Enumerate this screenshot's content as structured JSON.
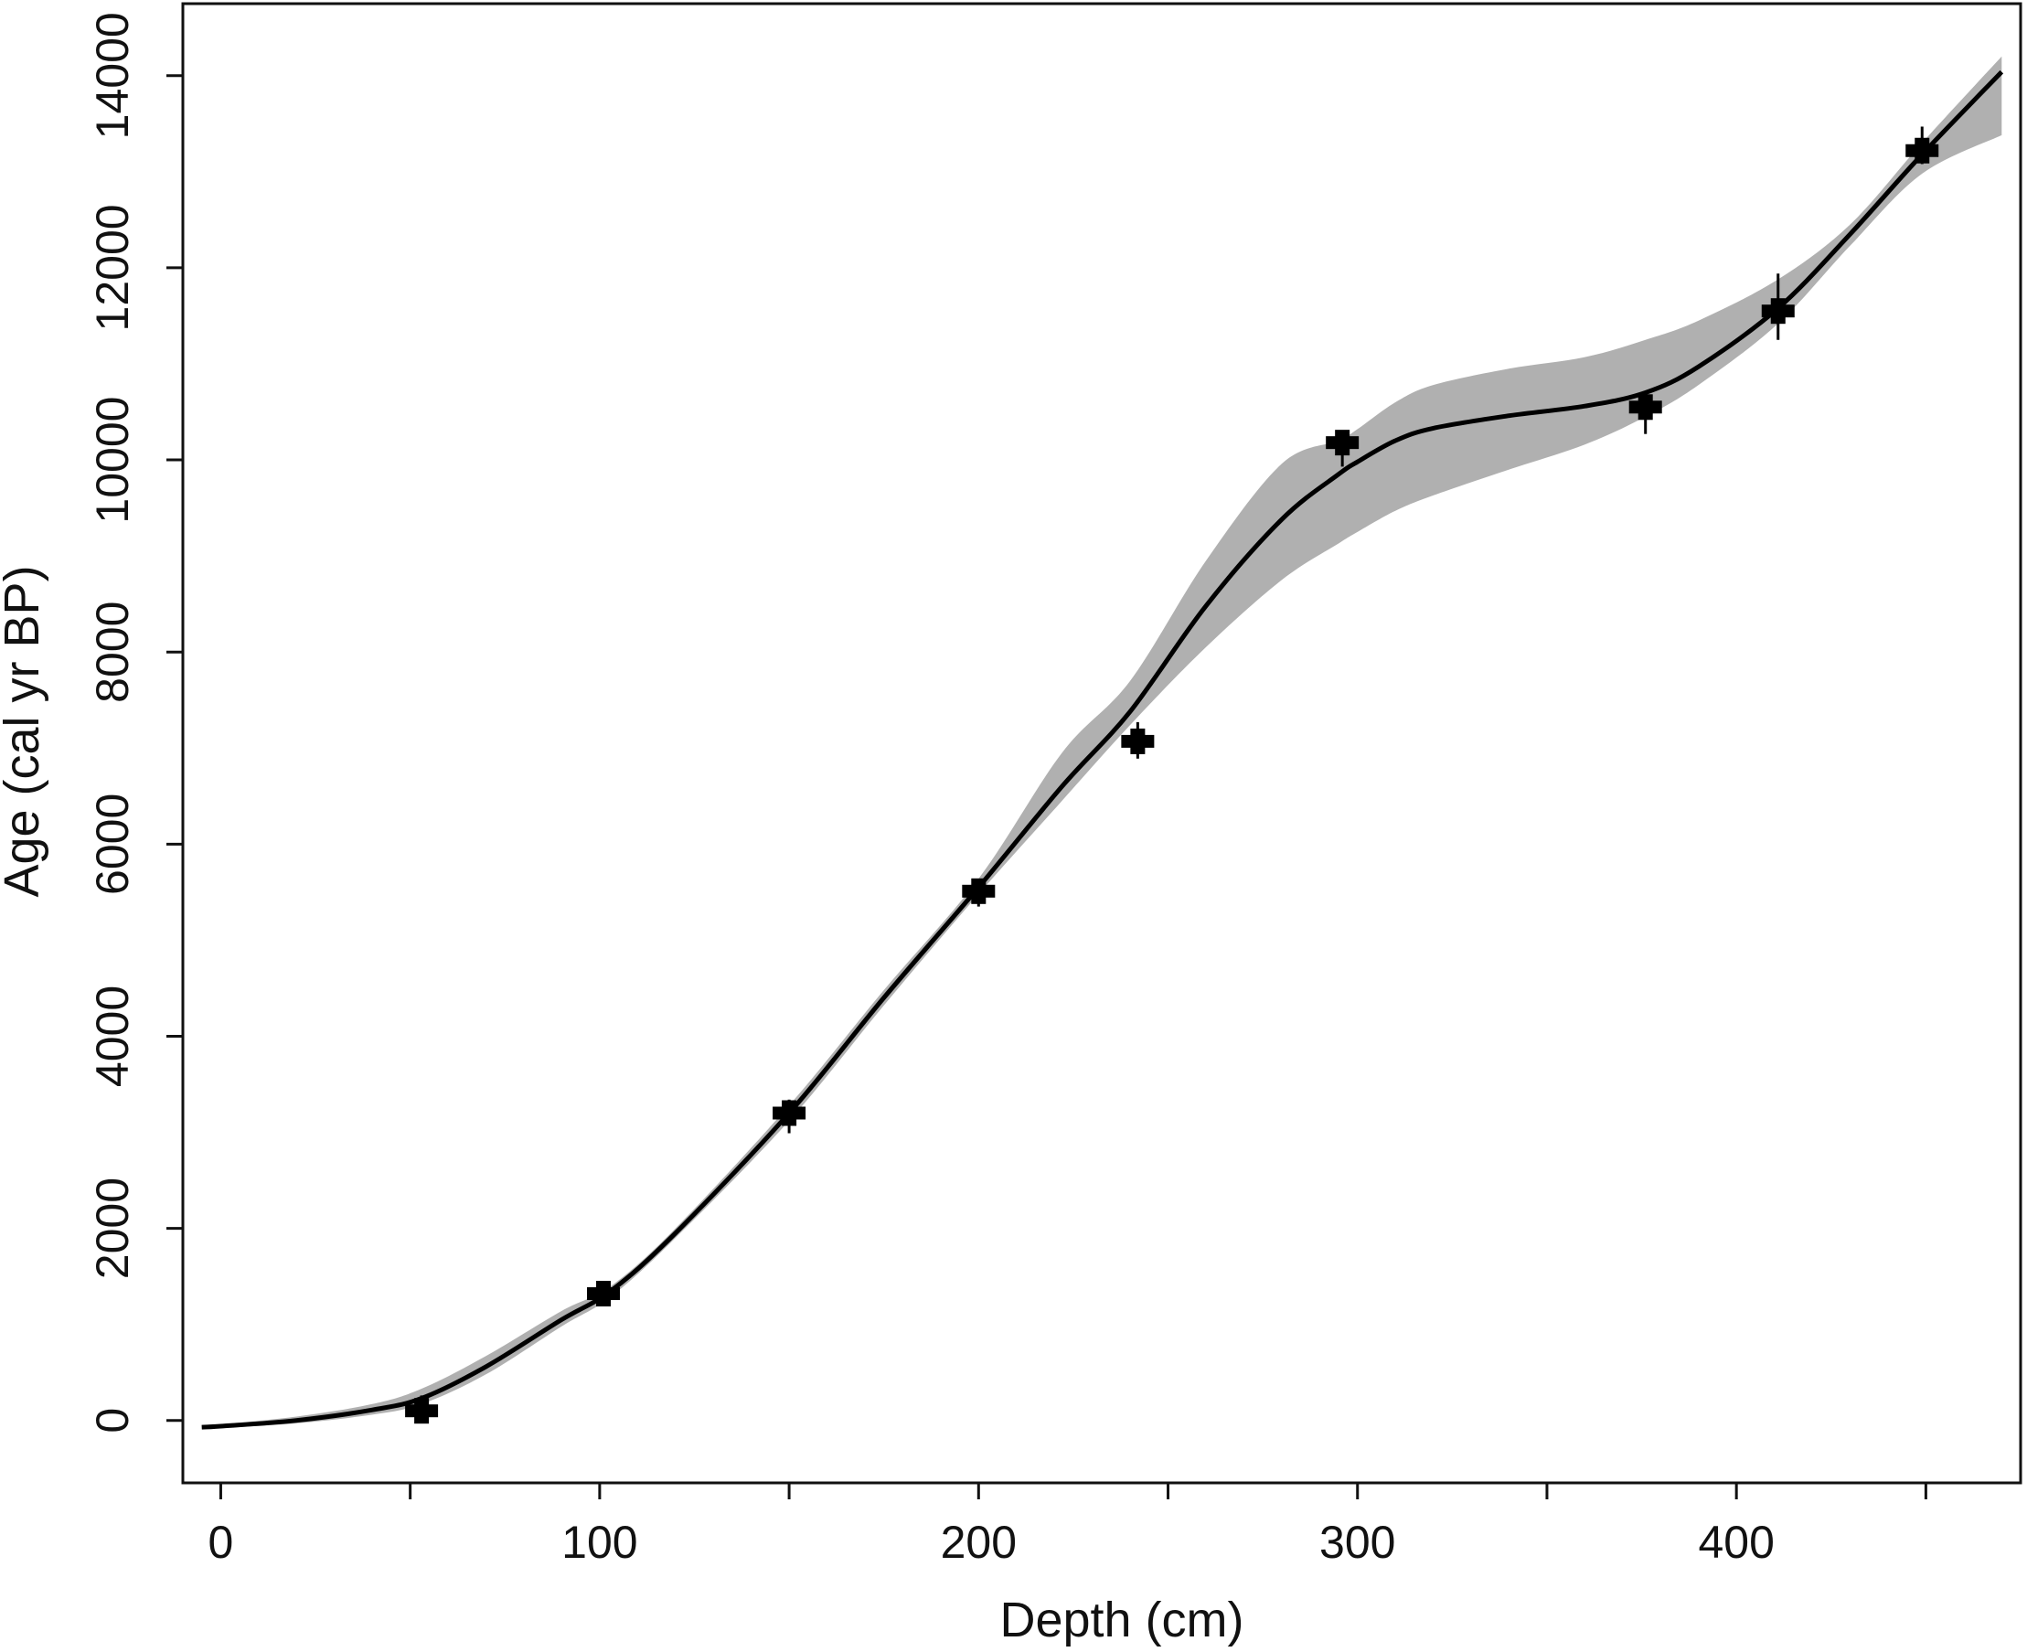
{
  "chart_data": {
    "type": "line",
    "title": "",
    "xlabel": "Depth (cm)",
    "ylabel": "Age (cal yr BP)",
    "xlim": [
      -10,
      475
    ],
    "ylim": [
      -650,
      14750
    ],
    "x_ticks": [
      0,
      100,
      200,
      300,
      400
    ],
    "x_minor_ticks": [
      50,
      150,
      250,
      350,
      450
    ],
    "y_ticks": [
      0,
      2000,
      4000,
      6000,
      8000,
      10000,
      12000,
      14000
    ],
    "grid": false,
    "legend": "none",
    "colors": {
      "line": "#000000",
      "band": "#b0b0b0",
      "dates": "#000000"
    },
    "series": [
      {
        "x": [
          -5,
          0,
          20,
          40,
          53,
          70,
          90,
          103,
          120,
          150,
          175,
          200,
          222,
          240,
          260,
          280,
          295,
          300,
          310,
          320,
          340,
          360,
          376,
          390,
          411,
          430,
          449,
          470
        ],
        "values": [
          -70,
          -60,
          0,
          110,
          230,
          560,
          1050,
          1350,
          1950,
          3200,
          4400,
          5550,
          6600,
          7380,
          8480,
          9380,
          9850,
          9980,
          10200,
          10330,
          10460,
          10560,
          10700,
          10970,
          11580,
          12350,
          13180,
          14040
        ]
      }
    ],
    "band": {
      "x": [
        -5,
        0,
        20,
        40,
        53,
        70,
        90,
        103,
        120,
        150,
        175,
        200,
        222,
        240,
        260,
        280,
        295,
        300,
        310,
        320,
        340,
        360,
        376,
        390,
        411,
        430,
        449,
        470
      ],
      "upper": [
        -50,
        -40,
        40,
        170,
        330,
        670,
        1140,
        1400,
        2000,
        3280,
        4480,
        5640,
        6950,
        7700,
        8950,
        9960,
        10200,
        10320,
        10600,
        10780,
        10950,
        11070,
        11250,
        11450,
        11880,
        12450,
        13300,
        14200
      ],
      "lower": [
        -90,
        -80,
        -30,
        60,
        170,
        480,
        980,
        1290,
        1900,
        3120,
        4320,
        5480,
        6450,
        7240,
        8050,
        8750,
        9130,
        9250,
        9470,
        9630,
        9900,
        10160,
        10450,
        10780,
        11420,
        12230,
        12980,
        13380
      ]
    },
    "dates": [
      {
        "depth": 53,
        "age": 100,
        "range": [
          40,
          260
        ]
      },
      {
        "depth": 101,
        "age": 1320,
        "range": [
          1200,
          1450
        ]
      },
      {
        "depth": 150,
        "age": 3200,
        "range": [
          2990,
          3340
        ]
      },
      {
        "depth": 200,
        "age": 5510,
        "range": [
          5350,
          5570
        ]
      },
      {
        "depth": 242,
        "age": 7070,
        "range": [
          6890,
          7270
        ]
      },
      {
        "depth": 296,
        "age": 10180,
        "range": [
          9930,
          10230
        ]
      },
      {
        "depth": 376,
        "age": 10550,
        "range": [
          10270,
          10660
        ]
      },
      {
        "depth": 411,
        "age": 11550,
        "range": [
          11250,
          11940
        ]
      },
      {
        "depth": 449,
        "age": 13220,
        "range": [
          13080,
          13470
        ]
      }
    ]
  }
}
